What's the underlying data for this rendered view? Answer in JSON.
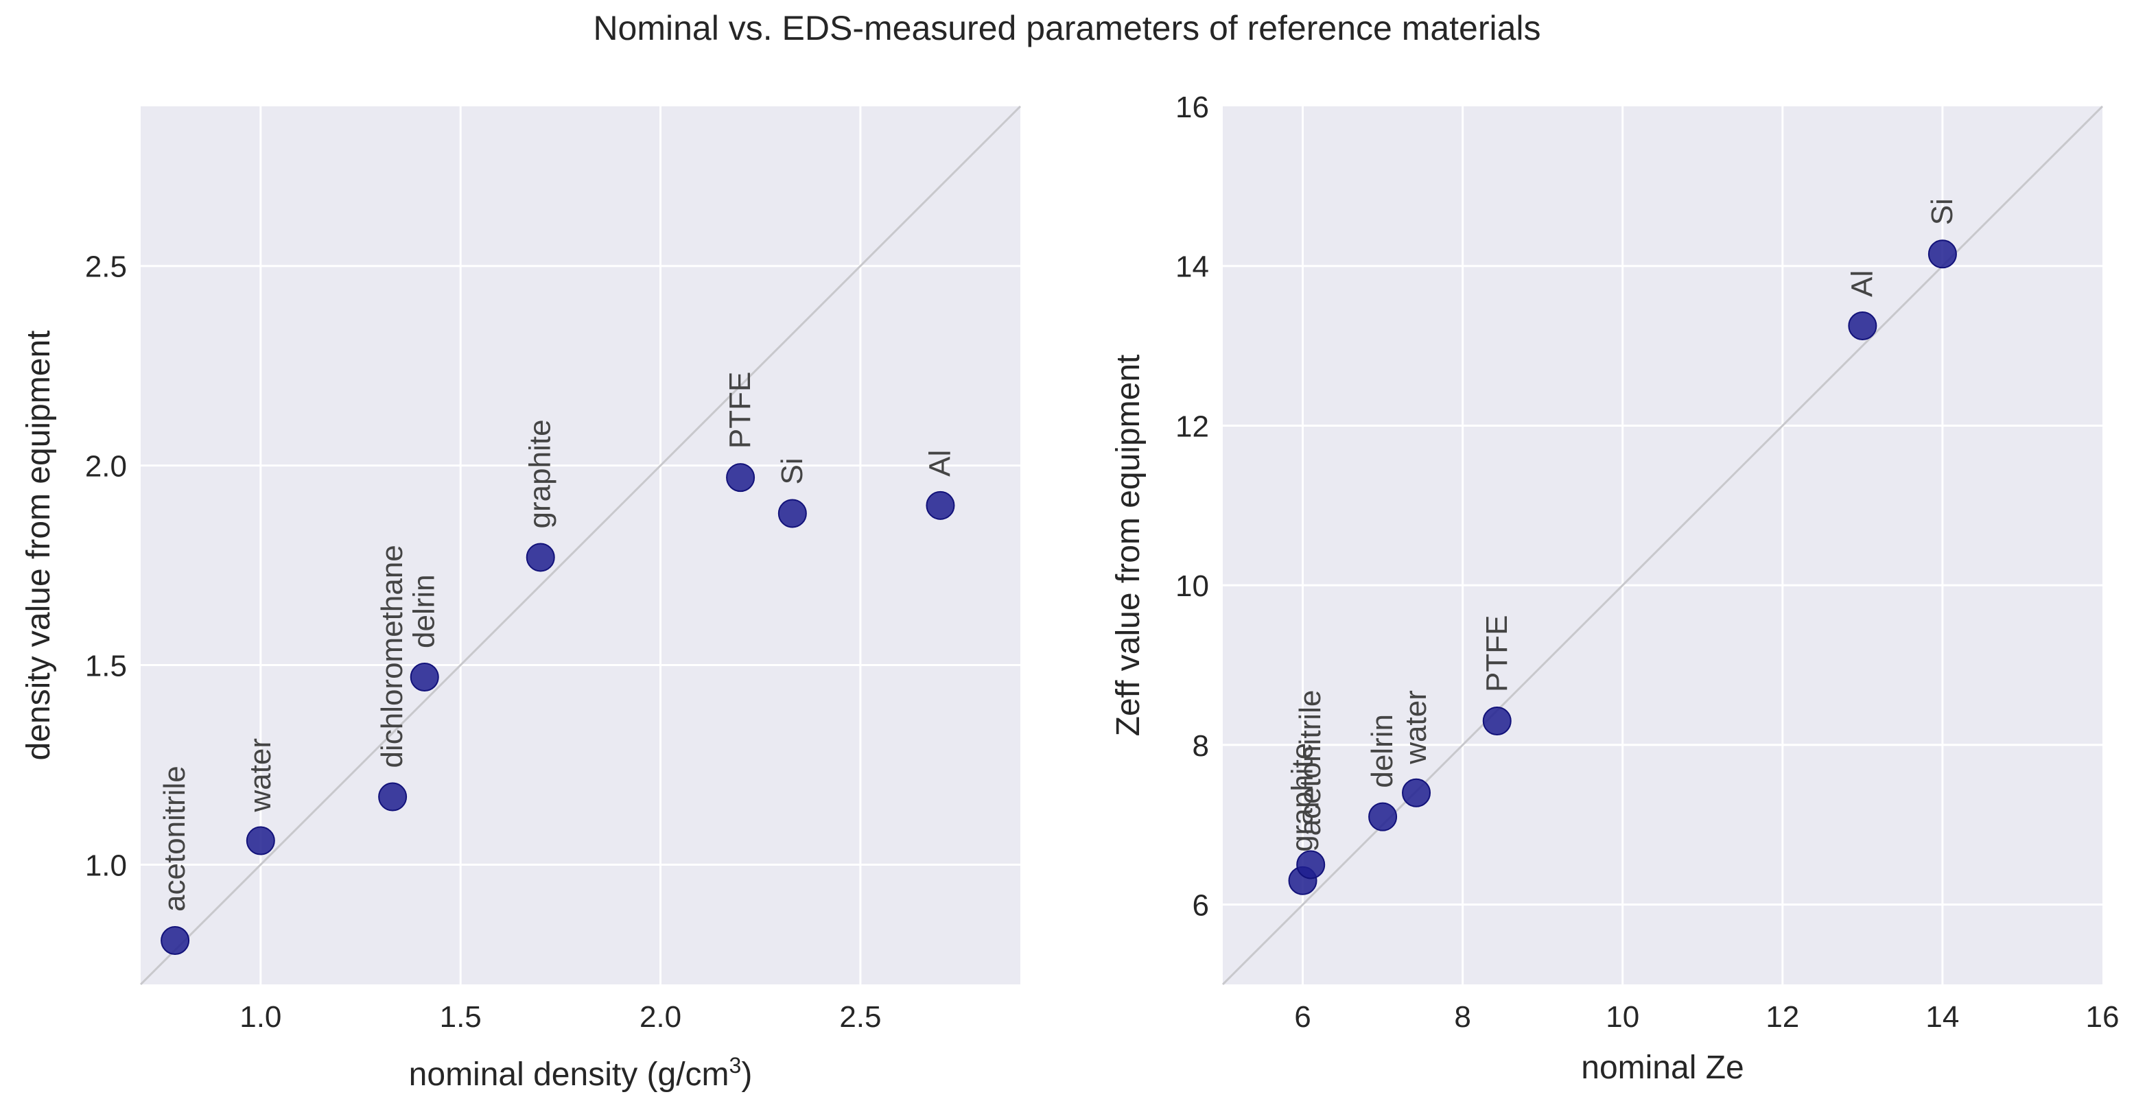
{
  "title": "Nominal vs. EDS-measured parameters of reference materials",
  "chart_data": [
    {
      "type": "scatter",
      "xlabel": "nominal density (g/cm",
      "xlabel_superscript": "3",
      "xlabel_suffix": ")",
      "ylabel": "density value from equipment",
      "xlim": [
        0.7,
        2.9
      ],
      "ylim": [
        0.7,
        2.9
      ],
      "xticks": [
        1.0,
        1.5,
        2.0,
        2.5
      ],
      "yticks": [
        1.0,
        1.5,
        2.0,
        2.5
      ],
      "xtick_labels": [
        "1.0",
        "1.5",
        "2.0",
        "2.5"
      ],
      "ytick_labels": [
        "1.0",
        "1.5",
        "2.0",
        "2.5"
      ],
      "grid": true,
      "identity_line": true,
      "points": [
        {
          "label": "acetonitrile",
          "x": 0.786,
          "y": 0.81
        },
        {
          "label": "water",
          "x": 1.0,
          "y": 1.06
        },
        {
          "label": "dichloromethane",
          "x": 1.33,
          "y": 1.17
        },
        {
          "label": "delrin",
          "x": 1.41,
          "y": 1.47
        },
        {
          "label": "graphite",
          "x": 1.7,
          "y": 1.77
        },
        {
          "label": "PTFE",
          "x": 2.2,
          "y": 1.97
        },
        {
          "label": "Si",
          "x": 2.33,
          "y": 1.88
        },
        {
          "label": "Al",
          "x": 2.7,
          "y": 1.9
        }
      ]
    },
    {
      "type": "scatter",
      "xlabel": "nominal Ze",
      "ylabel": "Zeff value from equipment",
      "xlim": [
        5,
        16
      ],
      "ylim": [
        5,
        16
      ],
      "xticks": [
        6,
        8,
        10,
        12,
        14,
        16
      ],
      "yticks": [
        6,
        8,
        10,
        12,
        14,
        16
      ],
      "xtick_labels": [
        "6",
        "8",
        "10",
        "12",
        "14",
        "16"
      ],
      "ytick_labels": [
        "6",
        "8",
        "10",
        "12",
        "14",
        "16"
      ],
      "grid": true,
      "identity_line": true,
      "points": [
        {
          "label": "graphite",
          "x": 6.0,
          "y": 6.3
        },
        {
          "label": "acetonitrile",
          "x": 6.1,
          "y": 6.5
        },
        {
          "label": "delrin",
          "x": 7.0,
          "y": 7.1
        },
        {
          "label": "water",
          "x": 7.42,
          "y": 7.4
        },
        {
          "label": "PTFE",
          "x": 8.43,
          "y": 8.3
        },
        {
          "label": "Al",
          "x": 13.0,
          "y": 13.25
        },
        {
          "label": "Si",
          "x": 14.0,
          "y": 14.15
        }
      ]
    }
  ],
  "colors": {
    "axes_bg": "#eaeaf2",
    "grid": "#ffffff",
    "identity_line": "#c8c8cc",
    "marker_fill": "#1f1f8f",
    "marker_edge": "#12127a",
    "text": "#262626",
    "annotation": "#444444"
  }
}
